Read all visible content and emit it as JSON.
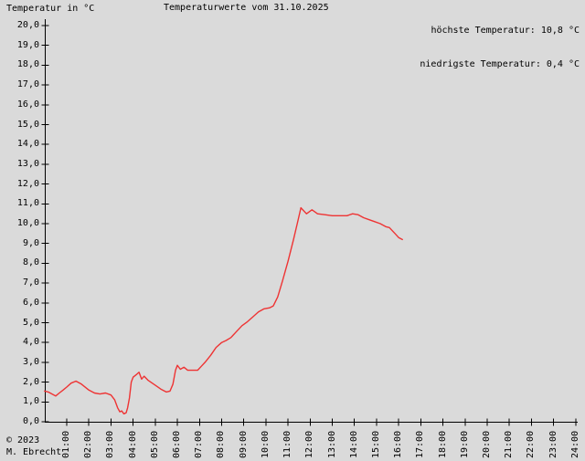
{
  "header": {
    "unit_label": "Temperatur in °C",
    "title": "Temperaturwerte vom 31.10.2025",
    "max_label": "höchste Temperatur: 10,8 °C",
    "min_label": "niedrigste Temperatur: 0,4 °C"
  },
  "footer": {
    "copyright": "© 2023",
    "author": "M. Ebrecht"
  },
  "chart_data": {
    "type": "line",
    "title": "Temperaturwerte vom 31.10.2025",
    "xlabel": "",
    "ylabel": "Temperatur in °C",
    "ylim": [
      0,
      20
    ],
    "xlim_hours": [
      0,
      24
    ],
    "grid": false,
    "legend": false,
    "background_color": "#dadada",
    "axis_color": "#000000",
    "stats": {
      "highest": "10,8 °C",
      "lowest": "0,4 °C"
    },
    "y_tick_labels": [
      "0,0",
      "1,0",
      "2,0",
      "3,0",
      "4,0",
      "5,0",
      "6,0",
      "7,0",
      "8,0",
      "9,0",
      "10,0",
      "11,0",
      "12,0",
      "13,0",
      "14,0",
      "15,0",
      "16,0",
      "17,0",
      "18,0",
      "19,0",
      "20,0"
    ],
    "x_tick_labels": [
      "01:00",
      "02:00",
      "03:00",
      "04:00",
      "05:00",
      "06:00",
      "07:00",
      "08:00",
      "09:00",
      "10:00",
      "11:00",
      "12:00",
      "13:00",
      "14:00",
      "15:00",
      "16:00",
      "17:00",
      "18:00",
      "19:00",
      "20:00",
      "21:00",
      "22:00",
      "23:00",
      "24:00"
    ],
    "series": [
      {
        "name": "Temperatur",
        "color": "#ee3333",
        "points": [
          [
            "00:00",
            1.55
          ],
          [
            "00:10",
            1.5
          ],
          [
            "00:20",
            1.4
          ],
          [
            "00:30",
            1.3
          ],
          [
            "00:40",
            1.45
          ],
          [
            "00:50",
            1.6
          ],
          [
            "01:00",
            1.75
          ],
          [
            "01:12",
            1.95
          ],
          [
            "01:25",
            2.05
          ],
          [
            "01:40",
            1.9
          ],
          [
            "02:00",
            1.6
          ],
          [
            "02:15",
            1.45
          ],
          [
            "02:30",
            1.4
          ],
          [
            "02:45",
            1.45
          ],
          [
            "03:00",
            1.35
          ],
          [
            "03:10",
            1.1
          ],
          [
            "03:18",
            0.7
          ],
          [
            "03:24",
            0.5
          ],
          [
            "03:29",
            0.55
          ],
          [
            "03:35",
            0.4
          ],
          [
            "03:41",
            0.45
          ],
          [
            "03:45",
            0.7
          ],
          [
            "03:50",
            1.2
          ],
          [
            "03:55",
            2.0
          ],
          [
            "04:00",
            2.25
          ],
          [
            "04:10",
            2.4
          ],
          [
            "04:16",
            2.5
          ],
          [
            "04:23",
            2.15
          ],
          [
            "04:30",
            2.3
          ],
          [
            "04:40",
            2.1
          ],
          [
            "05:00",
            1.85
          ],
          [
            "05:15",
            1.65
          ],
          [
            "05:30",
            1.5
          ],
          [
            "05:40",
            1.55
          ],
          [
            "05:48",
            1.9
          ],
          [
            "05:55",
            2.6
          ],
          [
            "06:00",
            2.85
          ],
          [
            "06:08",
            2.65
          ],
          [
            "06:18",
            2.75
          ],
          [
            "06:28",
            2.6
          ],
          [
            "06:55",
            2.6
          ],
          [
            "07:05",
            2.8
          ],
          [
            "07:15",
            3.0
          ],
          [
            "07:30",
            3.35
          ],
          [
            "07:45",
            3.75
          ],
          [
            "08:00",
            4.0
          ],
          [
            "08:12",
            4.1
          ],
          [
            "08:25",
            4.25
          ],
          [
            "08:40",
            4.55
          ],
          [
            "08:55",
            4.85
          ],
          [
            "09:10",
            5.05
          ],
          [
            "09:25",
            5.3
          ],
          [
            "09:40",
            5.55
          ],
          [
            "09:55",
            5.7
          ],
          [
            "10:10",
            5.75
          ],
          [
            "10:20",
            5.85
          ],
          [
            "10:32",
            6.3
          ],
          [
            "10:45",
            7.1
          ],
          [
            "11:00",
            8.1
          ],
          [
            "11:15",
            9.2
          ],
          [
            "11:25",
            10.0
          ],
          [
            "11:35",
            10.8
          ],
          [
            "11:50",
            10.5
          ],
          [
            "12:05",
            10.7
          ],
          [
            "12:20",
            10.5
          ],
          [
            "12:40",
            10.45
          ],
          [
            "13:00",
            10.4
          ],
          [
            "13:20",
            10.4
          ],
          [
            "13:40",
            10.4
          ],
          [
            "13:55",
            10.5
          ],
          [
            "14:10",
            10.45
          ],
          [
            "14:25",
            10.3
          ],
          [
            "14:40",
            10.2
          ],
          [
            "14:55",
            10.1
          ],
          [
            "15:10",
            10.0
          ],
          [
            "15:25",
            9.85
          ],
          [
            "15:35",
            9.8
          ],
          [
            "15:50",
            9.5
          ],
          [
            "16:00",
            9.3
          ],
          [
            "16:10",
            9.2
          ]
        ]
      }
    ]
  }
}
